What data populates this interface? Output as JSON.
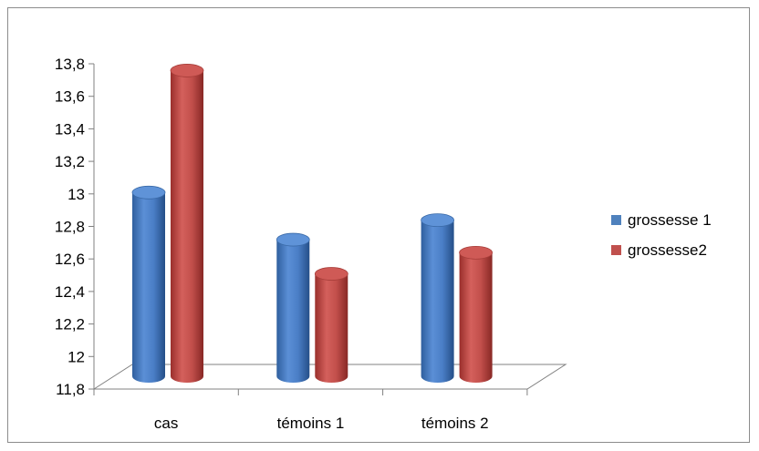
{
  "chart_data": {
    "type": "bar",
    "title": "",
    "xlabel": "",
    "ylabel": "",
    "categories": [
      "cas",
      "témoins 1",
      "témoins 2"
    ],
    "series": [
      {
        "name": "grossesse 1",
        "values": [
          12.93,
          12.64,
          12.76
        ]
      },
      {
        "name": "grossesse2",
        "values": [
          13.68,
          12.43,
          12.56
        ]
      }
    ],
    "ylim": [
      11.8,
      13.8
    ],
    "yticks": [
      "11,8",
      "12",
      "12,2",
      "12,4",
      "12,6",
      "12,8",
      "13",
      "13,2",
      "13,4",
      "13,6",
      "13,8"
    ],
    "grid": false,
    "legend": "right",
    "colors": {
      "series1": "#4f81bd",
      "series2": "#c0504d"
    },
    "style": "3d-cylinder"
  }
}
